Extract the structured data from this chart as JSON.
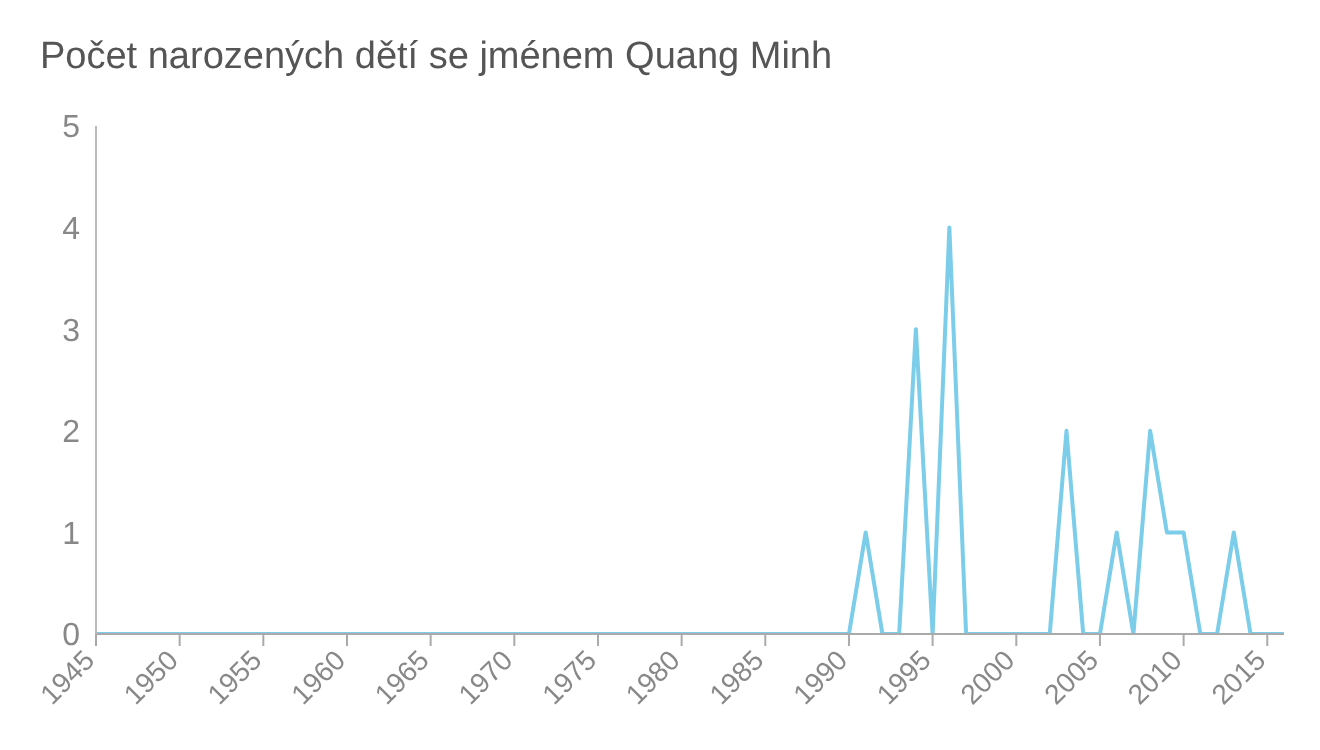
{
  "chart_data": {
    "type": "line",
    "title": "Počet narozených dětí se jménem Quang Minh",
    "x": [
      1945,
      1990,
      1991,
      1992,
      1993,
      1994,
      1995,
      1996,
      1997,
      2002,
      2003,
      2004,
      2005,
      2006,
      2007,
      2008,
      2009,
      2010,
      2011,
      2012,
      2013,
      2014,
      2016
    ],
    "series": [
      {
        "color": "#7ccde9",
        "values": [
          0,
          0,
          1,
          0,
          0,
          3,
          0,
          4,
          0,
          0,
          2,
          0,
          0,
          1,
          0,
          2,
          1,
          1,
          0,
          0,
          1,
          0,
          0
        ]
      }
    ],
    "xlim": [
      1945,
      2016
    ],
    "xticks": [
      1945,
      1950,
      1955,
      1960,
      1965,
      1970,
      1975,
      1980,
      1985,
      1990,
      1995,
      2000,
      2005,
      2010,
      2015
    ],
    "ylim": [
      0,
      5
    ],
    "yticks": [
      0,
      1,
      2,
      3,
      4,
      5
    ],
    "grid": false,
    "legend": false,
    "marker": "none",
    "line_style": "solid"
  }
}
